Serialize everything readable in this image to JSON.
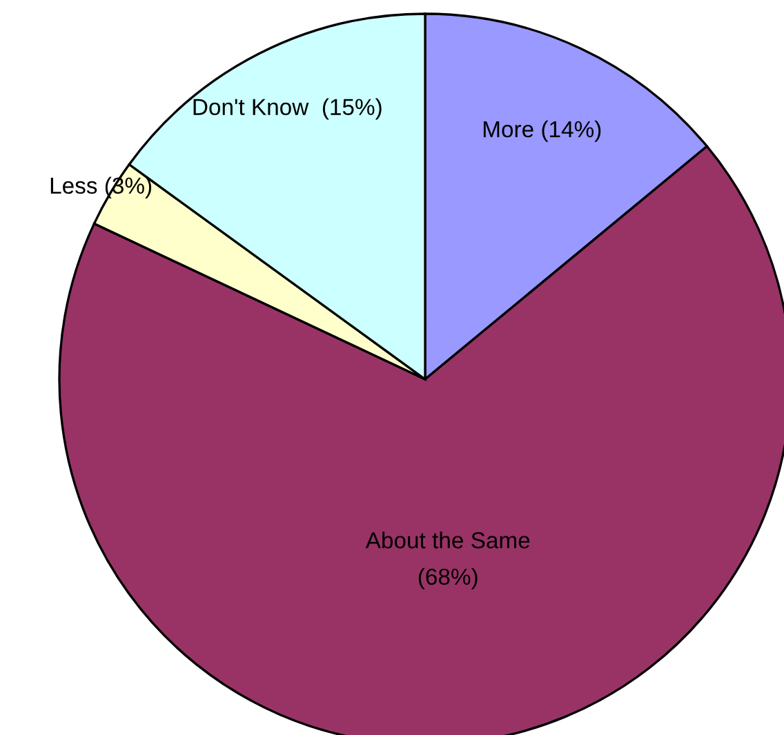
{
  "chart_data": {
    "type": "pie",
    "categories": [
      "More (14%)",
      "About the Same\n(68%)",
      "Less (3%)",
      "Don't Know  (15%)"
    ],
    "values": [
      14,
      68,
      3,
      15
    ],
    "colors": [
      "#9999ff",
      "#993366",
      "#ffffcc",
      "#ccffff"
    ]
  }
}
